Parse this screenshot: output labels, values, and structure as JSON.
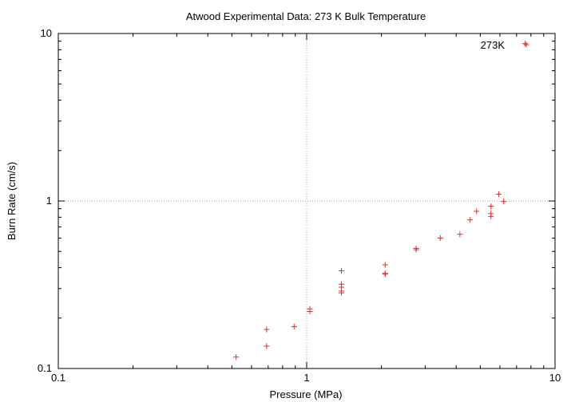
{
  "chart_data": {
    "type": "scatter",
    "title": "Atwood Experimental Data: 273 K Bulk Temperature",
    "xlabel": "Pressure (MPa)",
    "ylabel": "Burn Rate (cm/s)",
    "x_scale": "log",
    "y_scale": "log",
    "xlim": [
      0.1,
      10
    ],
    "ylim": [
      0.1,
      10
    ],
    "grid": true,
    "legend_position": "top-right",
    "x_ticks": [
      {
        "value": 0.1,
        "label": "0.1"
      },
      {
        "value": 1,
        "label": "1"
      },
      {
        "value": 10,
        "label": "10"
      }
    ],
    "y_ticks": [
      {
        "value": 0.1,
        "label": "0.1"
      },
      {
        "value": 1,
        "label": "1"
      },
      {
        "value": 10,
        "label": "10"
      }
    ],
    "series": [
      {
        "name": "273K",
        "color": "#e8292c",
        "marker": "plus",
        "points": [
          [
            0.52,
            0.117
          ],
          [
            0.69,
            0.136
          ],
          [
            0.69,
            0.171
          ],
          [
            0.89,
            0.178
          ],
          [
            1.03,
            0.219
          ],
          [
            1.03,
            0.227
          ],
          [
            1.38,
            0.283
          ],
          [
            1.38,
            0.29
          ],
          [
            1.38,
            0.306
          ],
          [
            1.38,
            0.319
          ],
          [
            1.38,
            0.383
          ],
          [
            2.07,
            0.366
          ],
          [
            2.07,
            0.37
          ],
          [
            2.07,
            0.416
          ],
          [
            2.76,
            0.512
          ],
          [
            2.76,
            0.521
          ],
          [
            3.45,
            0.601
          ],
          [
            4.14,
            0.633
          ],
          [
            4.55,
            0.772
          ],
          [
            4.83,
            0.868
          ],
          [
            5.52,
            0.809
          ],
          [
            5.52,
            0.841
          ],
          [
            5.52,
            0.93
          ],
          [
            5.93,
            1.098
          ],
          [
            6.21,
            0.993
          ],
          [
            7.58,
            8.7
          ]
        ]
      }
    ]
  }
}
